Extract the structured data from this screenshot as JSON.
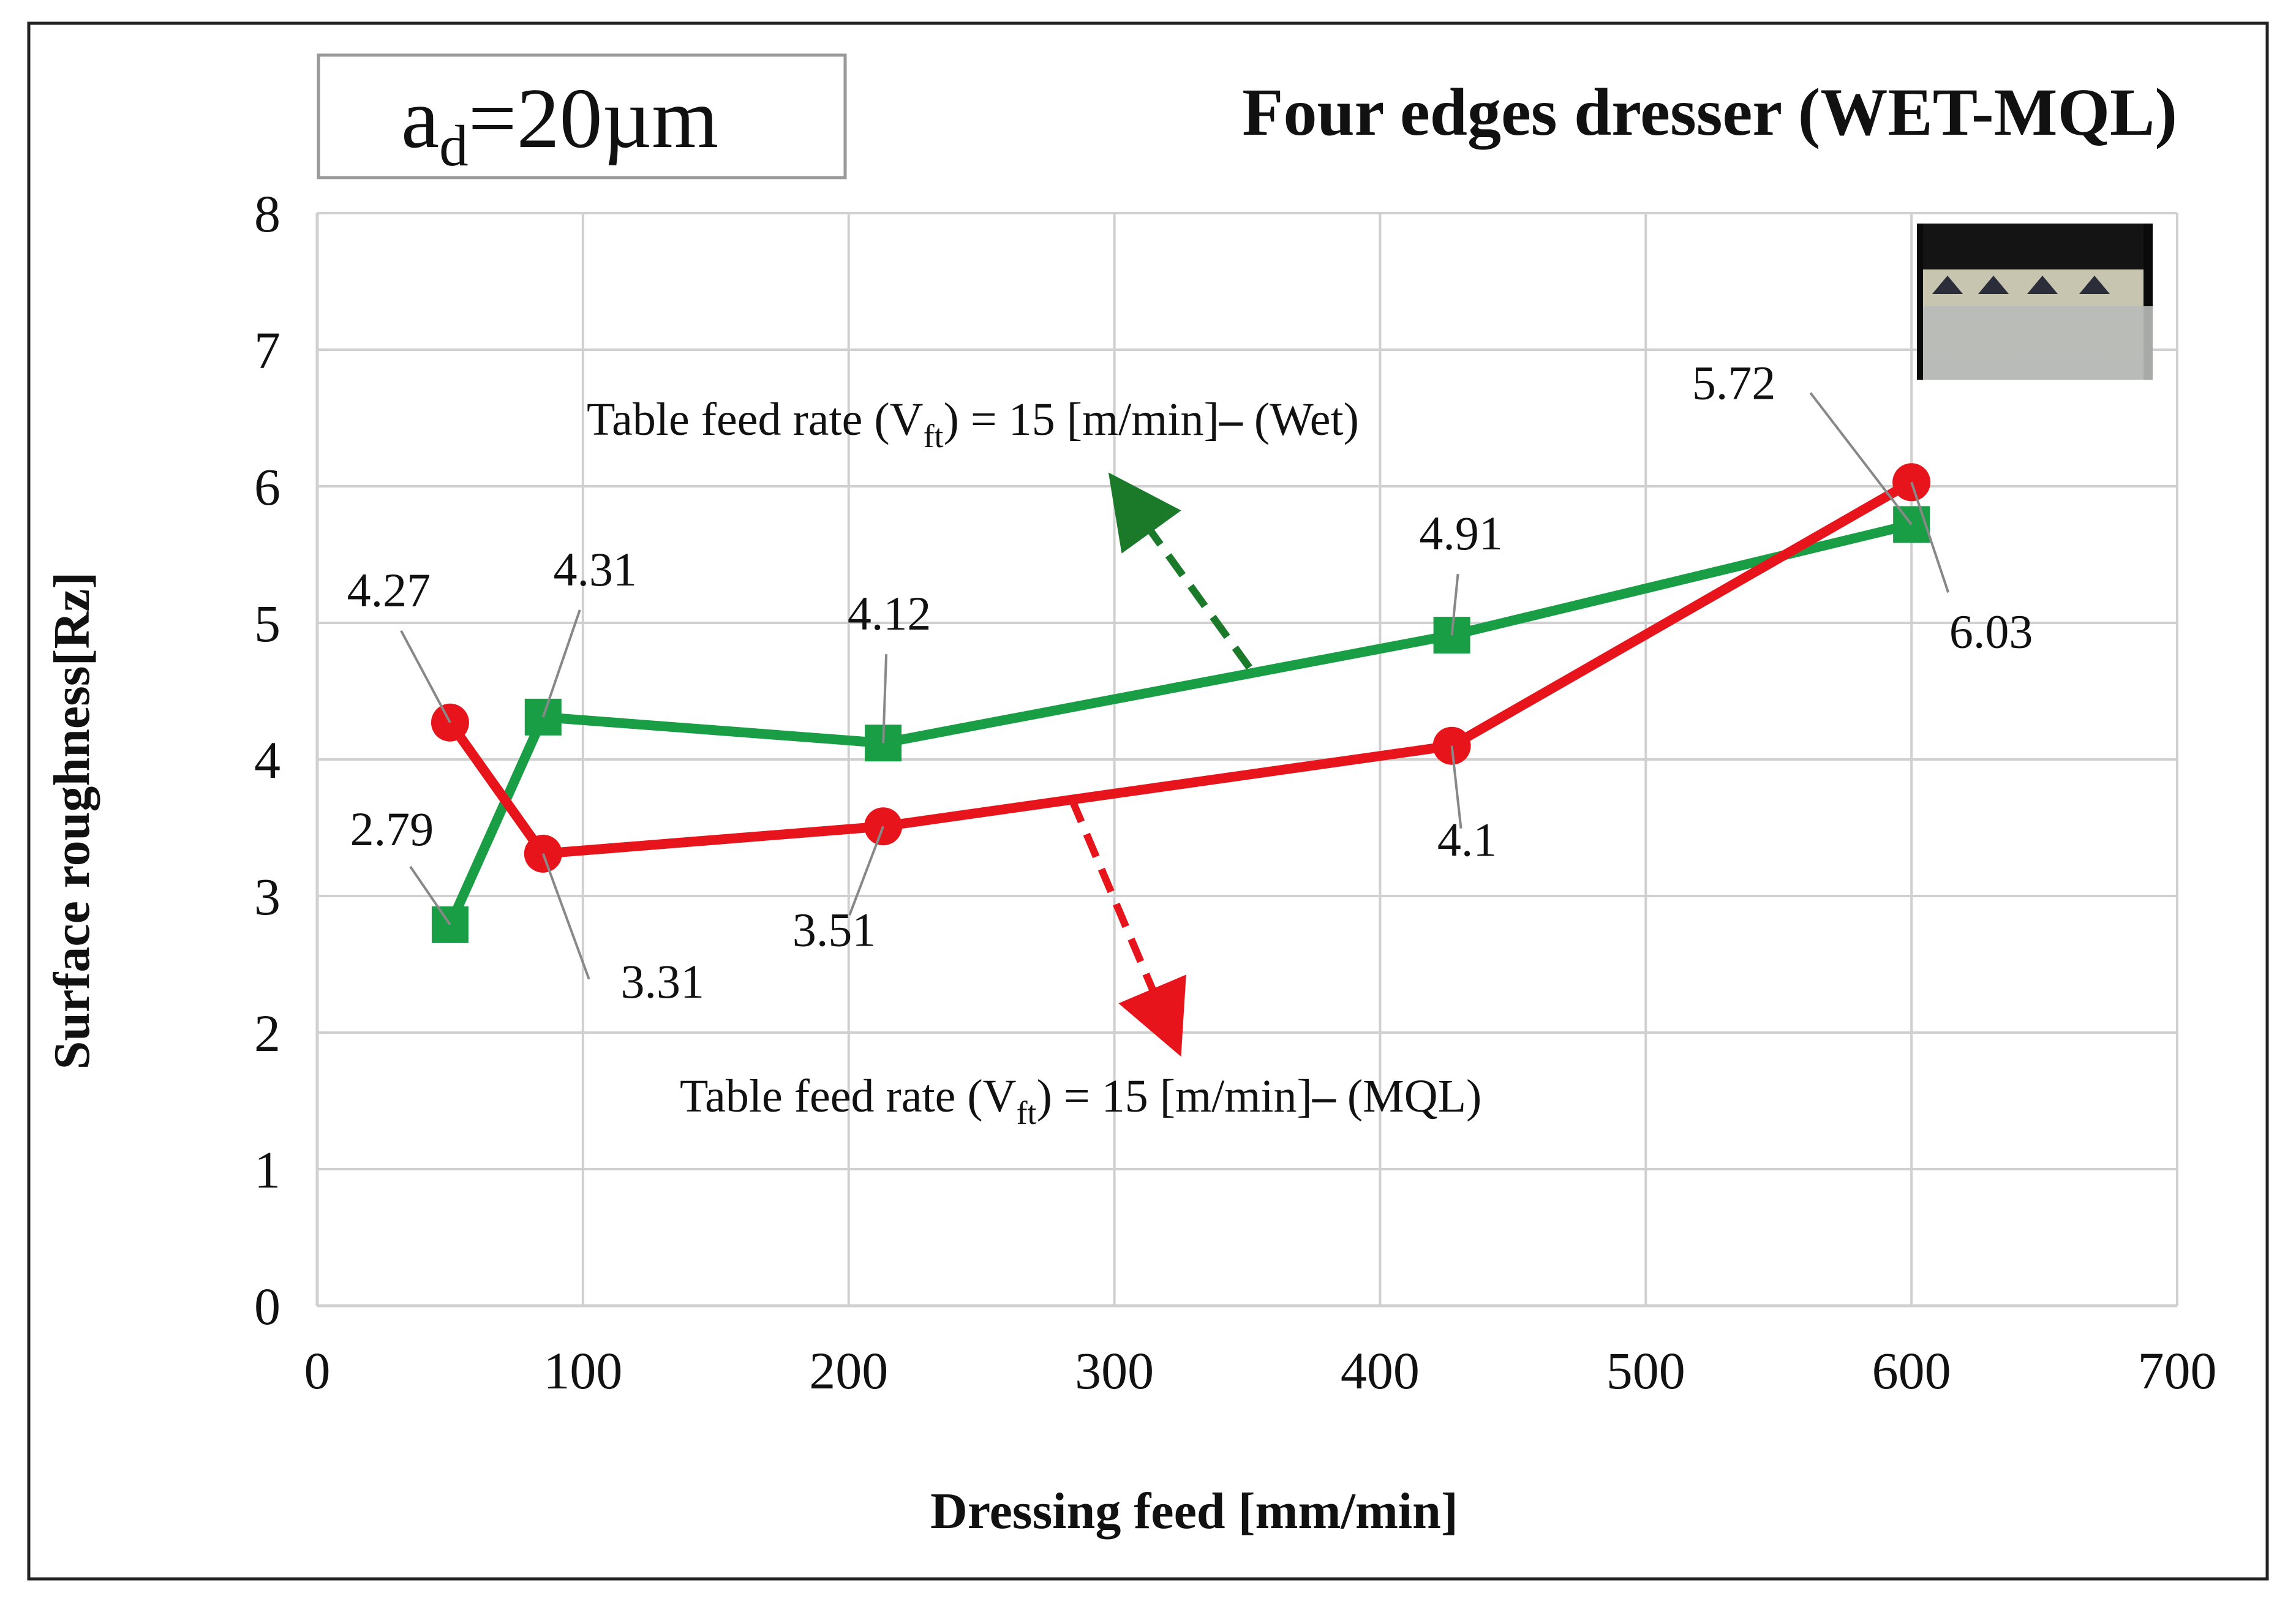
{
  "chart_data": {
    "type": "line",
    "title": "Four edges dresser (WET-MQL)",
    "parameter_label": {
      "main": "a",
      "sub": "d",
      "rest": "=20µm"
    },
    "xlabel": "Dressing feed [mm/min]",
    "ylabel": "Surface roughness[Rz]",
    "xlim": [
      0,
      700
    ],
    "ylim": [
      0,
      8
    ],
    "x_ticks": [
      0,
      100,
      200,
      300,
      400,
      500,
      600,
      700
    ],
    "y_ticks": [
      0,
      1,
      2,
      3,
      4,
      5,
      6,
      7,
      8
    ],
    "grid": true,
    "series": [
      {
        "name": "Wet",
        "color": "#1a9e45",
        "marker": "square",
        "x": [
          50,
          85,
          213,
          427,
          600
        ],
        "values": [
          2.79,
          4.31,
          4.12,
          4.91,
          5.72
        ],
        "labels": [
          "2.79",
          "4.31",
          "4.12",
          "4.91",
          "5.72"
        ]
      },
      {
        "name": "MQL",
        "color": "#e8141b",
        "marker": "circle",
        "x": [
          50,
          85,
          213,
          427,
          600
        ],
        "values": [
          4.27,
          3.31,
          3.51,
          4.1,
          6.03
        ],
        "labels": [
          "4.27",
          "3.31",
          "3.51",
          "4.1",
          "6.03"
        ]
      }
    ],
    "annotations": [
      {
        "series": "Wet",
        "color": "#1a7a2a",
        "parts": [
          "Table feed rate (V",
          "ft",
          ") = 15 [m/min]",
          "–",
          " (Wet)"
        ]
      },
      {
        "series": "MQL",
        "color": "#e8141b",
        "parts": [
          "Table feed rate (V",
          "ft",
          ") = 15 [m/min]",
          "–",
          " (MQL)"
        ]
      }
    ]
  },
  "inset_image": {
    "description_icon": "dresser-tool-photo-icon"
  }
}
